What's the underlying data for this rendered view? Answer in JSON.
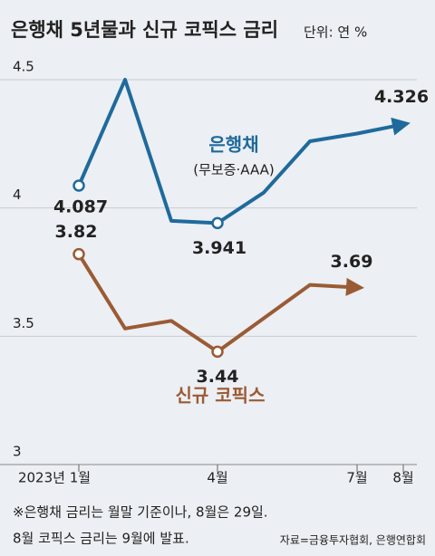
{
  "chart_data": {
    "type": "line",
    "title": "은행채 5년물과 신규 코픽스 금리",
    "subtitle": "단위: 연 %",
    "categories": [
      "2023년 1월",
      null,
      null,
      "4월",
      null,
      null,
      "7월",
      "8월"
    ],
    "series": [
      {
        "name": "은행채",
        "note": "(무보증·AAA)",
        "color": "#1f6a9c",
        "values": [
          4.087,
          4.5,
          3.95,
          3.941,
          4.06,
          4.26,
          4.29,
          4.326
        ],
        "labeled": [
          0,
          3,
          7
        ],
        "markers": [
          0,
          3
        ]
      },
      {
        "name": "신규 코픽스",
        "color": "#9a5b34",
        "values": [
          3.82,
          3.53,
          3.56,
          3.44,
          3.57,
          3.7,
          3.69,
          null
        ],
        "labeled": [
          0,
          3,
          6
        ],
        "markers": [
          0,
          3
        ]
      }
    ],
    "ylim": [
      3,
      4.5
    ],
    "yticks": [
      3,
      3.5,
      4,
      4.5
    ],
    "grid": true,
    "notes": [
      "※은행채 금리는 월말 기준이나, 8월은 29일.",
      "8월 코픽스 금리는 9월에 발표."
    ],
    "source": "자료=금융투자협회, 은행연합회"
  }
}
